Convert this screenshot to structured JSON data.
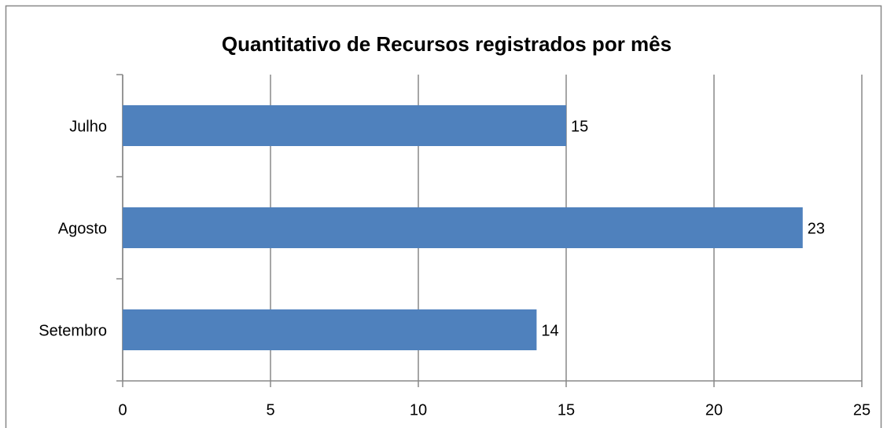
{
  "chart_data": {
    "type": "bar",
    "orientation": "horizontal",
    "title": "Quantitativo de Recursos registrados por mês",
    "categories": [
      "Julho",
      "Agosto",
      "Setembro"
    ],
    "values": [
      15,
      23,
      14
    ],
    "color": "#4f81bd",
    "xlim": [
      0,
      25
    ],
    "xticks": [
      0,
      5,
      10,
      15,
      20,
      25
    ],
    "grid": true
  }
}
